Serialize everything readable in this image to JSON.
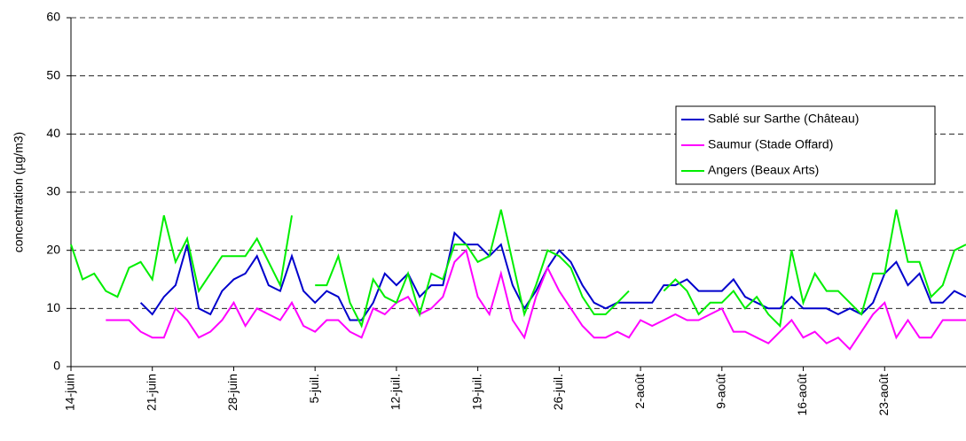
{
  "chart_data": {
    "type": "line",
    "y_label": "concentration (µg/m3)",
    "categories": [
      "14-juin",
      null,
      null,
      null,
      null,
      null,
      null,
      "21-juin",
      null,
      null,
      null,
      null,
      null,
      null,
      "28-juin",
      null,
      null,
      null,
      null,
      null,
      null,
      "5-juil.",
      null,
      null,
      null,
      null,
      null,
      null,
      "12-juil.",
      null,
      null,
      null,
      null,
      null,
      null,
      "19-juil.",
      null,
      null,
      null,
      null,
      null,
      null,
      "26-juil.",
      null,
      null,
      null,
      null,
      null,
      null,
      "2-août",
      null,
      null,
      null,
      null,
      null,
      null,
      "9-août",
      null,
      null,
      null,
      null,
      null,
      null,
      "16-août",
      null,
      null,
      null,
      null,
      null,
      null,
      "23-août",
      null,
      null,
      null,
      null,
      null,
      null,
      null
    ],
    "series": [
      {
        "name": "Sablé sur Sarthe (Château)",
        "color": "#0000cc",
        "values": [
          null,
          null,
          null,
          null,
          null,
          null,
          11,
          9,
          12,
          14,
          21,
          10,
          9,
          13,
          15,
          16,
          19,
          14,
          13,
          19,
          13,
          11,
          13,
          12,
          8,
          8,
          11,
          16,
          14,
          16,
          12,
          14,
          14,
          23,
          21,
          21,
          19,
          21,
          14,
          10,
          13,
          17,
          20,
          18,
          14,
          11,
          10,
          11,
          11,
          11,
          11,
          14,
          14,
          15,
          13,
          13,
          13,
          15,
          12,
          11,
          10,
          10,
          12,
          10,
          10,
          10,
          9,
          10,
          9,
          11,
          16,
          18,
          14,
          16,
          11,
          11,
          13,
          12
        ]
      },
      {
        "name": "Saumur (Stade Offard)",
        "color": "#ff00ff",
        "values": [
          null,
          null,
          null,
          8,
          8,
          8,
          6,
          5,
          5,
          10,
          8,
          5,
          6,
          8,
          11,
          7,
          10,
          9,
          8,
          11,
          7,
          6,
          8,
          8,
          6,
          5,
          10,
          9,
          11,
          12,
          9,
          10,
          12,
          18,
          20,
          12,
          9,
          16,
          8,
          5,
          12,
          17,
          13,
          10,
          7,
          5,
          5,
          6,
          5,
          8,
          7,
          8,
          9,
          8,
          8,
          9,
          10,
          6,
          6,
          5,
          4,
          6,
          8,
          5,
          6,
          4,
          5,
          3,
          6,
          9,
          11,
          5,
          8,
          5,
          5,
          8,
          8,
          8
        ]
      },
      {
        "name": "Angers (Beaux Arts)",
        "color": "#00ee00",
        "values": [
          21,
          15,
          16,
          13,
          12,
          17,
          18,
          15,
          26,
          18,
          22,
          13,
          16,
          19,
          19,
          19,
          22,
          18,
          14,
          26,
          null,
          14,
          14,
          19,
          11,
          7,
          15,
          12,
          11,
          16,
          9,
          16,
          15,
          21,
          21,
          18,
          19,
          27,
          18,
          9,
          14,
          20,
          19,
          17,
          12,
          9,
          9,
          11,
          13,
          null,
          null,
          13,
          15,
          13,
          9,
          11,
          11,
          13,
          10,
          12,
          9,
          7,
          20,
          11,
          16,
          13,
          13,
          11,
          9,
          16,
          16,
          27,
          18,
          18,
          12,
          14,
          20,
          21
        ]
      }
    ],
    "ylim": [
      0,
      60
    ],
    "yticks": [
      0,
      10,
      20,
      30,
      40,
      50,
      60
    ],
    "grid": true,
    "legend": "right"
  }
}
